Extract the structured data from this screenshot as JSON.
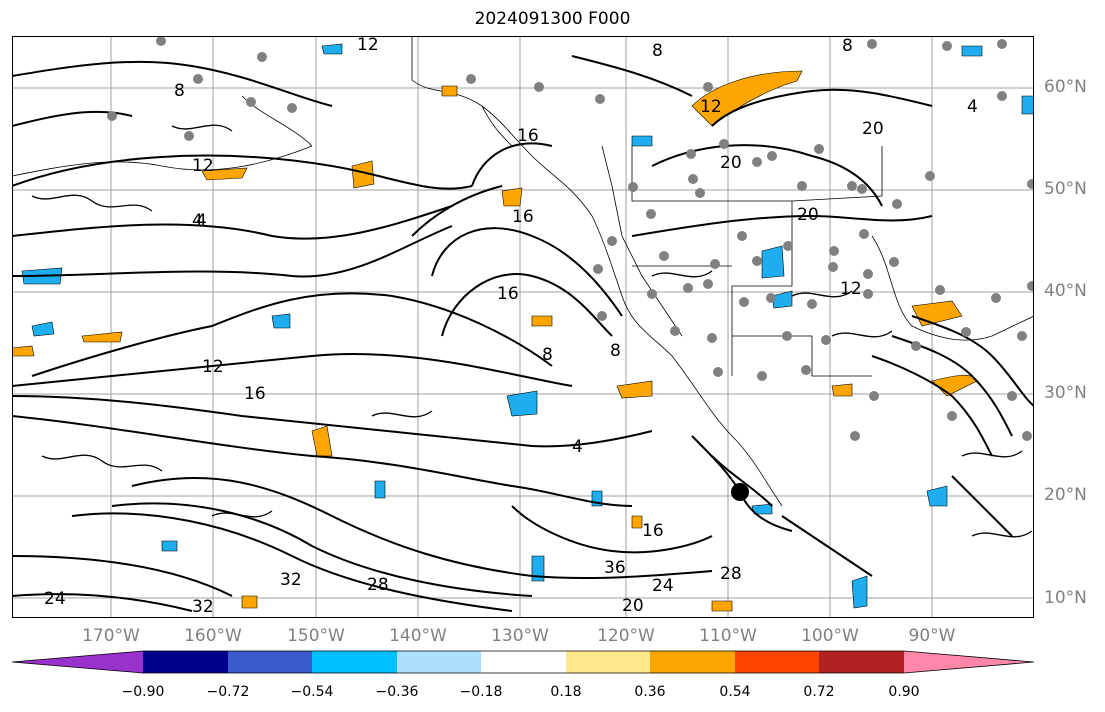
{
  "title": "2024091300 F000",
  "latitude_labels": [
    "60°N",
    "50°N",
    "40°N",
    "30°N",
    "20°N",
    "10°N"
  ],
  "longitude_labels": [
    "170°W",
    "160°W",
    "150°W",
    "140°W",
    "130°W",
    "120°W",
    "110°W",
    "100°W",
    "90°W"
  ],
  "contour_labels": [
    "12",
    "8",
    "4",
    "12",
    "8",
    "16",
    "20",
    "16",
    "8",
    "20",
    "16",
    "12",
    "4",
    "20",
    "12",
    "16",
    "8",
    "4",
    "16",
    "28",
    "36",
    "32",
    "28",
    "24",
    "32",
    "20",
    "24",
    "8",
    "12",
    "4"
  ],
  "colorbar": {
    "ticks": [
      "−0.90",
      "−0.72",
      "−0.54",
      "−0.36",
      "−0.18",
      "0.18",
      "0.36",
      "0.54",
      "0.72",
      "0.90"
    ],
    "colors": [
      "#9932CC",
      "#00008B",
      "#3A5BCB",
      "#00BFFF",
      "#ADDFFF",
      "#FFFFFF",
      "#FFE88C",
      "#FFA500",
      "#FF4500",
      "#B22222",
      "#FF88AA"
    ]
  },
  "colors": {
    "positive_shading": "#FFA500",
    "negative_shading": "#1EAEF0",
    "station_marker": "#808080",
    "contour": "#000000",
    "gridline": "#A0A0A0"
  }
}
